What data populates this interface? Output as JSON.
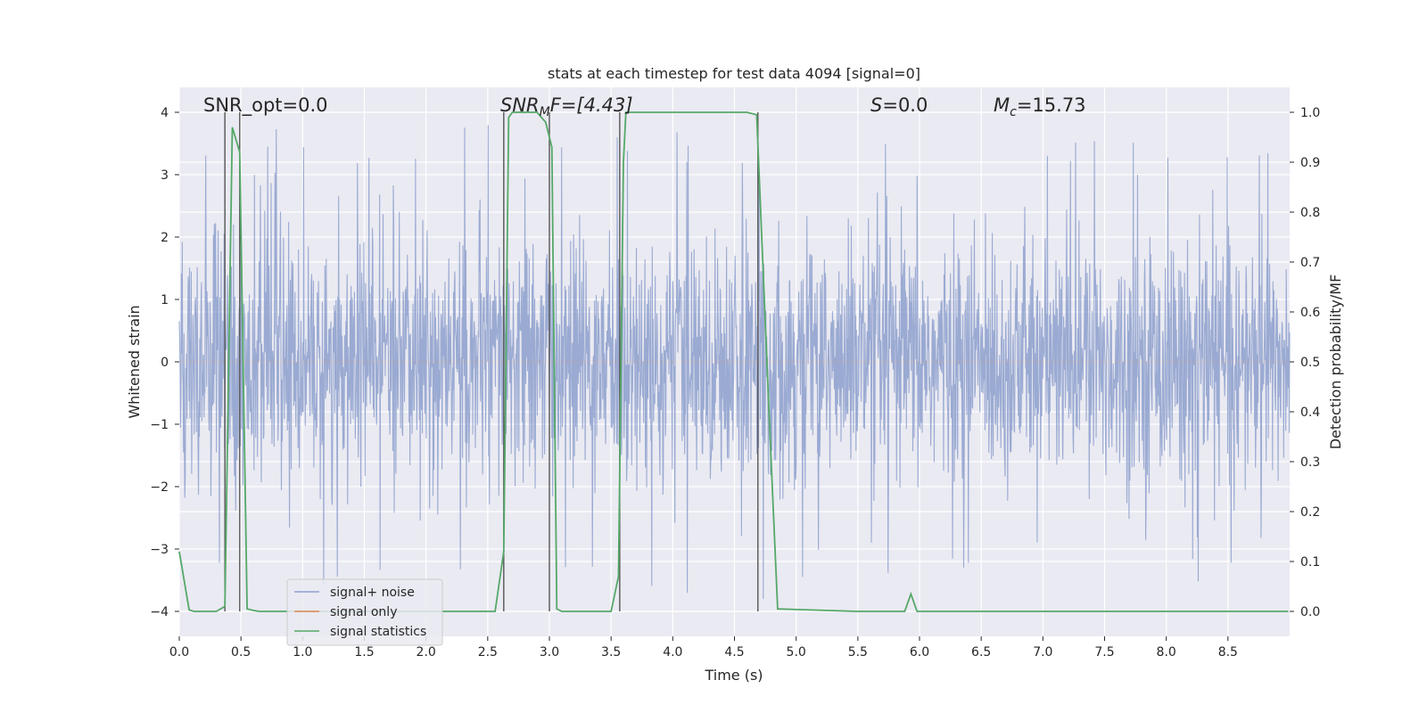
{
  "chart_data": {
    "type": "line",
    "title": "stats at each timestep for test data 4094 [signal=0]",
    "xlabel": "Time (s)",
    "ylabel": "Whitened strain",
    "y2label": "Detection probability/MF",
    "xlim": [
      0,
      9.0
    ],
    "ylim": [
      -4.4,
      4.4
    ],
    "y2lim": [
      -0.05,
      1.05
    ],
    "grid": true,
    "xticks": [
      0.0,
      0.5,
      1.0,
      1.5,
      2.0,
      2.5,
      3.0,
      3.5,
      4.0,
      4.5,
      5.0,
      5.5,
      6.0,
      6.5,
      7.0,
      7.5,
      8.0,
      8.5
    ],
    "xtick_labels": [
      "0.0",
      "0.5",
      "1.0",
      "1.5",
      "2.0",
      "2.5",
      "3.0",
      "3.5",
      "4.0",
      "4.5",
      "5.0",
      "5.5",
      "6.0",
      "6.5",
      "7.0",
      "7.5",
      "8.0",
      "8.5"
    ],
    "yticks": [
      -4,
      -3,
      -2,
      -1,
      0,
      1,
      2,
      3,
      4
    ],
    "ytick_labels": [
      "−4",
      "−3",
      "−2",
      "−1",
      "0",
      "1",
      "2",
      "3",
      "4"
    ],
    "y2ticks": [
      0.0,
      0.1,
      0.2,
      0.3,
      0.4,
      0.5,
      0.6,
      0.7,
      0.8,
      0.9,
      1.0
    ],
    "y2tick_labels": [
      "0.0",
      "0.1",
      "0.2",
      "0.3",
      "0.4",
      "0.5",
      "0.6",
      "0.7",
      "0.8",
      "0.9",
      "1.0"
    ],
    "legend_placement": "lower left",
    "series": [
      {
        "name": "signal+ noise",
        "color": "#8c9fcc",
        "axis": "left",
        "description_of_values": "noise-dominated whitened strain, spread mostly within ±2 with peaks to about ±4",
        "amplitude_envelope": 1.6,
        "spike_range": [
          -3.8,
          4.0
        ]
      },
      {
        "name": "signal only",
        "color": "#dd8452",
        "axis": "left",
        "values_constant": 0.0
      },
      {
        "name": "signal statistics",
        "color": "#55a868",
        "axis": "right",
        "x": [
          0.0,
          0.08,
          0.12,
          0.3,
          0.37,
          0.43,
          0.49,
          0.55,
          0.6,
          0.65,
          0.7,
          1.0,
          2.0,
          2.56,
          2.63,
          2.67,
          2.7,
          2.9,
          2.97,
          3.02,
          3.06,
          3.1,
          3.5,
          3.56,
          3.6,
          3.62,
          3.66,
          4.0,
          4.6,
          4.68,
          4.78,
          4.85,
          5.5,
          5.88,
          5.93,
          5.98,
          6.5,
          8.99
        ],
        "y": [
          0.12,
          0.003,
          0.0,
          0.0,
          0.01,
          0.97,
          0.92,
          0.005,
          0.002,
          0.0,
          0.0,
          0.0,
          0.0,
          0.0,
          0.12,
          0.99,
          1.0,
          1.0,
          0.98,
          0.93,
          0.005,
          0.0,
          0.0,
          0.07,
          0.9,
          1.0,
          1.0,
          1.0,
          1.0,
          0.995,
          0.4,
          0.005,
          0.0,
          0.0,
          0.035,
          0.0,
          0.0,
          0.0
        ]
      }
    ],
    "vertical_markers_x": [
      0.37,
      0.49,
      2.63,
      3.0,
      3.57,
      4.69
    ],
    "annotations": [
      {
        "text": "SNR_opt=0.0"
      },
      {
        "math_main": "SNR",
        "math_sub": "M",
        "math_rest": "F=[4.43]"
      },
      {
        "math_main": "S",
        "math_rest": "=0.0"
      },
      {
        "math_main": "M",
        "math_sub": "c",
        "math_rest": "=15.73"
      }
    ]
  }
}
